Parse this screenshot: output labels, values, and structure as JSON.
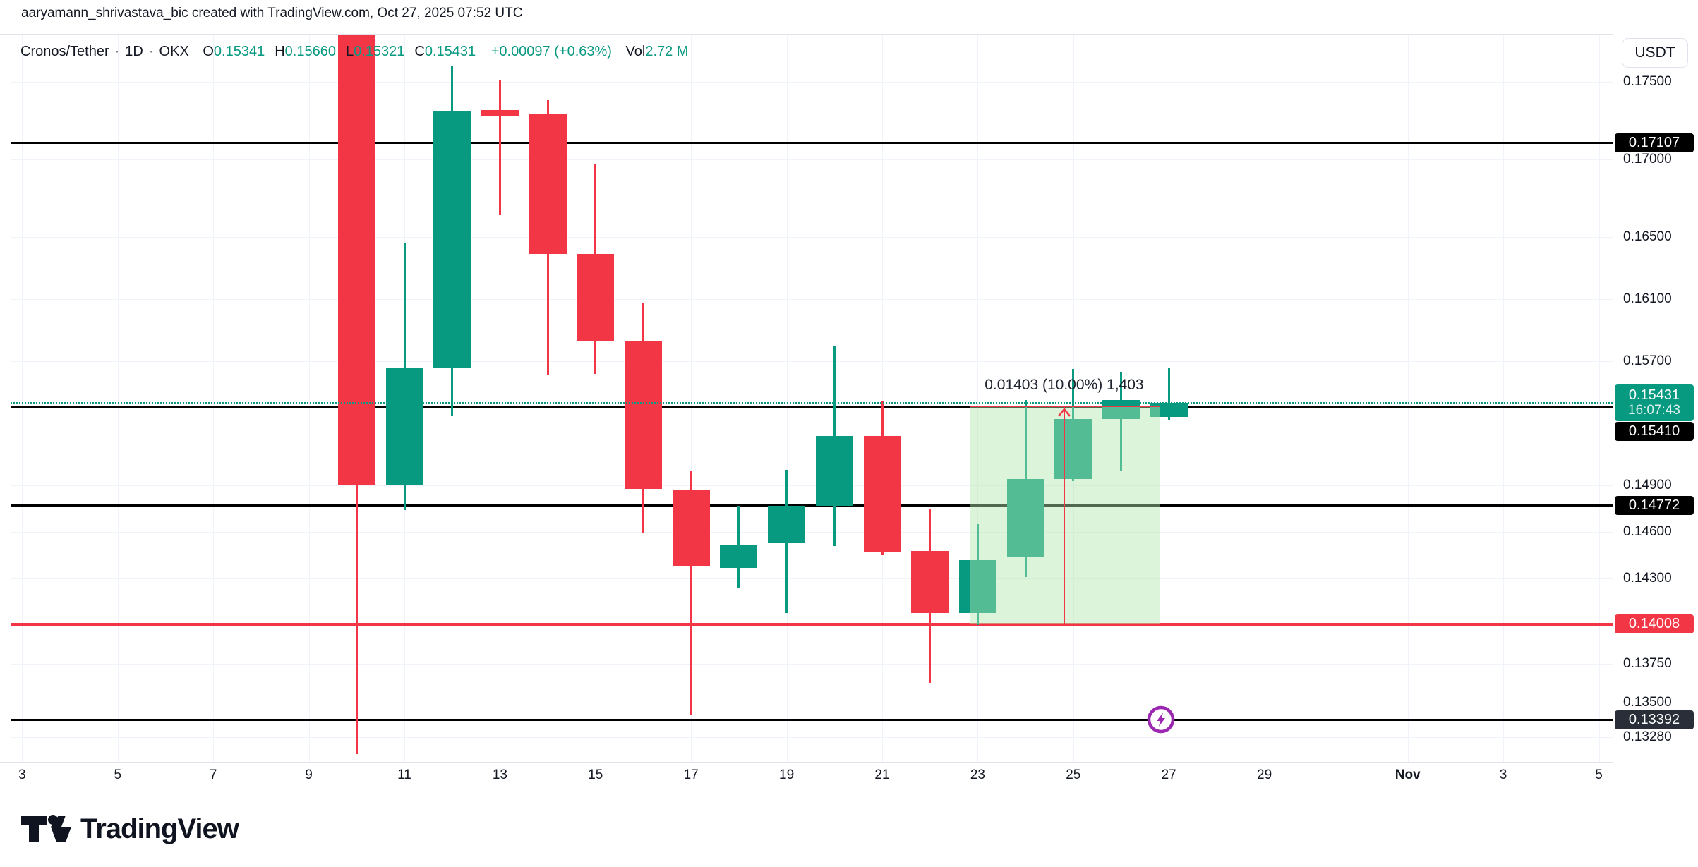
{
  "header": {
    "attribution": "aaryamann_shrivastava_bic created with TradingView.com, Oct 27, 2025 07:52 UTC"
  },
  "legend": {
    "title_parts": [
      "Cronos/Tether",
      "1D",
      "OKX"
    ],
    "separator": "·",
    "ohlc": [
      {
        "k": "O",
        "v": "0.15341"
      },
      {
        "k": "H",
        "v": "0.15660"
      },
      {
        "k": "L",
        "v": "0.15321"
      },
      {
        "k": "C",
        "v": "0.15431"
      }
    ],
    "change": "+0.00097 (+0.63%)",
    "volume_label": "Vol",
    "volume_value": "2.72 M",
    "value_color": "#089981"
  },
  "axis": {
    "currency": "USDT",
    "price_ticks": [
      "0.17500",
      "0.17000",
      "0.16500",
      "0.16100",
      "0.15700",
      "0.14900",
      "0.14600",
      "0.14300",
      "0.13750",
      "0.13500",
      "0.13280"
    ],
    "price_tick_values": [
      0.175,
      0.17,
      0.165,
      0.161,
      0.157,
      0.149,
      0.146,
      0.143,
      0.1375,
      0.135,
      0.1328
    ],
    "date_ticks": [
      {
        "label": "3",
        "t": -8
      },
      {
        "label": "5",
        "t": -6
      },
      {
        "label": "7",
        "t": -4
      },
      {
        "label": "9",
        "t": -2
      },
      {
        "label": "11",
        "t": 0
      },
      {
        "label": "13",
        "t": 2
      },
      {
        "label": "15",
        "t": 4
      },
      {
        "label": "17",
        "t": 6
      },
      {
        "label": "19",
        "t": 8
      },
      {
        "label": "21",
        "t": 10
      },
      {
        "label": "23",
        "t": 12
      },
      {
        "label": "25",
        "t": 14
      },
      {
        "label": "27",
        "t": 16
      },
      {
        "label": "29",
        "t": 18
      },
      {
        "label": "Nov",
        "t": 21,
        "bold": true
      },
      {
        "label": "3",
        "t": 23
      },
      {
        "label": "5",
        "t": 25
      }
    ]
  },
  "price_badges": [
    {
      "label": "0.17107",
      "price": 0.17107,
      "bg": "#000000"
    },
    {
      "label": "0.15431",
      "sub": "16:07:43",
      "price": 0.15431,
      "bg": "#089981",
      "current": true
    },
    {
      "label": "0.15410",
      "price": 0.1541,
      "bg": "#000000",
      "stack_below_current": true
    },
    {
      "label": "0.14772",
      "price": 0.14772,
      "bg": "#000000"
    },
    {
      "label": "0.14008",
      "price": 0.14008,
      "bg": "#f23645"
    },
    {
      "label": "0.13392",
      "price": 0.13392,
      "bg": "#2a2e39"
    }
  ],
  "chart_data": {
    "type": "candlestick",
    "symbol": "Cronos/Tether (CRO/USDT)",
    "exchange": "OKX",
    "timeframe": "1D",
    "up_color": "#089981",
    "down_color": "#f23645",
    "grid": true,
    "y_domain": [
      0.1312,
      0.178
    ],
    "candles": [
      {
        "date": "Oct 10",
        "t": -1,
        "o": 0.1792,
        "h": 0.1795,
        "l": 0.1317,
        "c": 0.149
      },
      {
        "date": "Oct 11",
        "t": 0,
        "o": 0.149,
        "h": 0.1646,
        "l": 0.1474,
        "c": 0.1566
      },
      {
        "date": "Oct 12",
        "t": 1,
        "o": 0.1566,
        "h": 0.176,
        "l": 0.1535,
        "c": 0.1731
      },
      {
        "date": "Oct 13",
        "t": 2,
        "o": 0.1732,
        "h": 0.1751,
        "l": 0.1664,
        "c": 0.1728
      },
      {
        "date": "Oct 14",
        "t": 3,
        "o": 0.1729,
        "h": 0.1738,
        "l": 0.1561,
        "c": 0.1639
      },
      {
        "date": "Oct 15",
        "t": 4,
        "o": 0.1639,
        "h": 0.1697,
        "l": 0.1562,
        "c": 0.1583
      },
      {
        "date": "Oct 16",
        "t": 5,
        "o": 0.1583,
        "h": 0.1608,
        "l": 0.1459,
        "c": 0.1488
      },
      {
        "date": "Oct 17",
        "t": 6,
        "o": 0.1487,
        "h": 0.1499,
        "l": 0.1342,
        "c": 0.1438
      },
      {
        "date": "Oct 18",
        "t": 7,
        "o": 0.1437,
        "h": 0.1477,
        "l": 0.1424,
        "c": 0.1452
      },
      {
        "date": "Oct 19",
        "t": 8,
        "o": 0.1453,
        "h": 0.15,
        "l": 0.1408,
        "c": 0.1477
      },
      {
        "date": "Oct 20",
        "t": 9,
        "o": 0.1477,
        "h": 0.158,
        "l": 0.1451,
        "c": 0.1522
      },
      {
        "date": "Oct 21",
        "t": 10,
        "o": 0.1522,
        "h": 0.1544,
        "l": 0.1445,
        "c": 0.1447
      },
      {
        "date": "Oct 22",
        "t": 11,
        "o": 0.1448,
        "h": 0.1475,
        "l": 0.1363,
        "c": 0.1408
      },
      {
        "date": "Oct 23",
        "t": 12,
        "o": 0.1408,
        "h": 0.1465,
        "l": 0.14,
        "c": 0.1442
      },
      {
        "date": "Oct 24",
        "t": 13,
        "o": 0.1444,
        "h": 0.1545,
        "l": 0.1431,
        "c": 0.1494
      },
      {
        "date": "Oct 25",
        "t": 14,
        "o": 0.1494,
        "h": 0.1565,
        "l": 0.1493,
        "c": 0.1533
      },
      {
        "date": "Oct 26",
        "t": 15,
        "o": 0.1533,
        "h": 0.1563,
        "l": 0.1499,
        "c": 0.1545
      },
      {
        "date": "Oct 27",
        "t": 16,
        "o": 0.15341,
        "h": 0.1566,
        "l": 0.15321,
        "c": 0.15431
      }
    ],
    "levels": [
      {
        "price": 0.17107,
        "color": "#000000",
        "width": 3,
        "style": "solid"
      },
      {
        "price": 0.1541,
        "color": "#000000",
        "width": 3,
        "style": "solid"
      },
      {
        "price": 0.14772,
        "color": "#000000",
        "width": 3,
        "style": "solid"
      },
      {
        "price": 0.13392,
        "color": "#000000",
        "width": 3,
        "style": "solid"
      },
      {
        "price": 0.14008,
        "color": "#f23645",
        "width": 4,
        "style": "solid"
      }
    ],
    "current_price_line": {
      "price": 0.15431,
      "color": "#089981",
      "style": "dotted"
    },
    "projection": {
      "label": "0.01403 (10.00%) 1,403",
      "x1_t": 11.83,
      "x2_t": 15.81,
      "arrow_t": 13.81,
      "top_price": 0.1541,
      "bottom_price": 0.14008,
      "fill": "rgba(178,230,170,0.45)",
      "line_color": "#f23645"
    },
    "marker": {
      "t": 15.83,
      "price": 0.13392,
      "color": "#9c27b0",
      "icon": "lightning"
    }
  },
  "footer": {
    "logo_text": "TradingView"
  }
}
